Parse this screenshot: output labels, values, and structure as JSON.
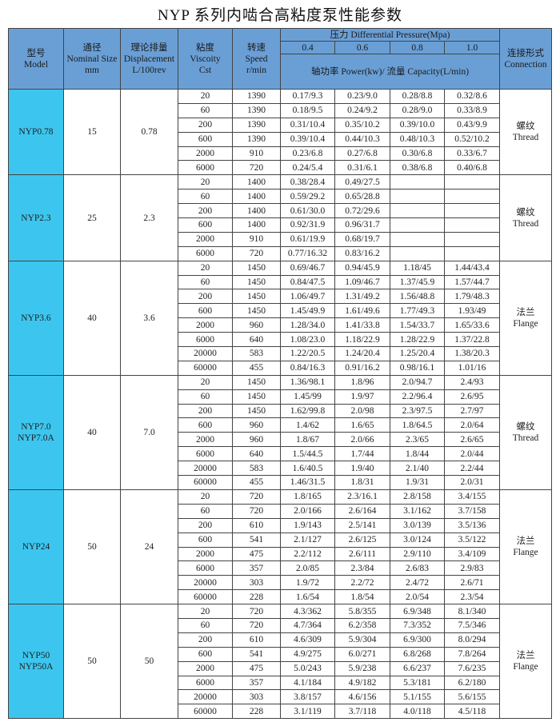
{
  "title": "NYP 系列内啮合高粘度泵性能参数",
  "header": {
    "model": [
      "型号",
      "Model"
    ],
    "nominal_size": [
      "通径",
      "Nominal Size",
      "mm"
    ],
    "displacement": [
      "理论排量",
      "Displacement",
      "L/100rev"
    ],
    "viscosity": [
      "粘度",
      "Viscoity",
      "Cst"
    ],
    "speed": [
      "转速",
      "Speed",
      "r/min"
    ],
    "pressure": "压力 Differential Pressure(Mpa)",
    "pressures": [
      "0.4",
      "0.6",
      "0.8",
      "1.0"
    ],
    "power_capacity": "轴功率 Power(kw)/ 流量 Capacity(L/min)",
    "connection": [
      "连接形式",
      "Connection"
    ]
  },
  "colors": {
    "header_bg": "#6a9fd6",
    "model_bg": "#3cc6ef"
  },
  "groups": [
    {
      "model": [
        "NYP0.78"
      ],
      "size": "15",
      "disp": "0.78",
      "conn": [
        "螺纹",
        "Thread"
      ],
      "rows": [
        [
          "20",
          "1390",
          "0.17/9.3",
          "0.23/9.0",
          "0.28/8.8",
          "0.32/8.6"
        ],
        [
          "60",
          "1390",
          "0.18/9.5",
          "0.24/9.2",
          "0.28/9.0",
          "0.33/8.9"
        ],
        [
          "200",
          "1390",
          "0.31/10.4",
          "0.35/10.2",
          "0.39/10.0",
          "0.43/9.9"
        ],
        [
          "600",
          "1390",
          "0.39/10.4",
          "0.44/10.3",
          "0.48/10.3",
          "0.52/10.2"
        ],
        [
          "2000",
          "910",
          "0.23/6.8",
          "0.27/6.8",
          "0.30/6.8",
          "0.33/6.7"
        ],
        [
          "6000",
          "720",
          "0.24/5.4",
          "0.31/6.1",
          "0.38/6.8",
          "0.40/6.8"
        ]
      ]
    },
    {
      "model": [
        "NYP2.3"
      ],
      "size": "25",
      "disp": "2.3",
      "conn": [
        "螺纹",
        "Thread"
      ],
      "rows": [
        [
          "20",
          "1400",
          "0.38/28.4",
          "0.49/27.5",
          "",
          ""
        ],
        [
          "60",
          "1400",
          "0.59/29.2",
          "0.65/28.8",
          "",
          ""
        ],
        [
          "200",
          "1400",
          "0.61/30.0",
          "0.72/29.6",
          "",
          ""
        ],
        [
          "600",
          "1400",
          "0.92/31.9",
          "0.96/31.7",
          "",
          ""
        ],
        [
          "2000",
          "910",
          "0.61/19.9",
          "0.68/19.7",
          "",
          ""
        ],
        [
          "6000",
          "720",
          "0.77/16.32",
          "0.83/16.2",
          "",
          ""
        ]
      ]
    },
    {
      "model": [
        "NYP3.6"
      ],
      "size": "40",
      "disp": "3.6",
      "conn": [
        "法兰",
        "Flange"
      ],
      "rows": [
        [
          "20",
          "1450",
          "0.69/46.7",
          "0.94/45.9",
          "1.18/45",
          "1.44/43.4"
        ],
        [
          "60",
          "1450",
          "0.84/47.5",
          "1.09/46.7",
          "1.37/45.9",
          "1.57/44.7"
        ],
        [
          "200",
          "1450",
          "1.06/49.7",
          "1.31/49.2",
          "1.56/48.8",
          "1.79/48.3"
        ],
        [
          "600",
          "1450",
          "1.45/49.9",
          "1.61/49.6",
          "1.77/49.3",
          "1.93/49"
        ],
        [
          "2000",
          "960",
          "1.28/34.0",
          "1.41/33.8",
          "1.54/33.7",
          "1.65/33.6"
        ],
        [
          "6000",
          "640",
          "1.08/23.0",
          "1.18/22.9",
          "1.28/22.9",
          "1.37/22.8"
        ],
        [
          "20000",
          "583",
          "1.22/20.5",
          "1.24/20.4",
          "1.25/20.4",
          "1.38/20.3"
        ],
        [
          "60000",
          "455",
          "0.84/16.3",
          "0.91/16.2",
          "0.98/16.1",
          "1.01/16"
        ]
      ]
    },
    {
      "model": [
        "NYP7.0",
        "NYP7.0A"
      ],
      "size": "40",
      "disp": "7.0",
      "conn": [
        "螺纹",
        "Thread"
      ],
      "rows": [
        [
          "20",
          "1450",
          "1.36/98.1",
          "1.8/96",
          "2.0/94.7",
          "2.4/93"
        ],
        [
          "60",
          "1450",
          "1.45/99",
          "1.9/97",
          "2.2/96.4",
          "2.6/95"
        ],
        [
          "200",
          "1450",
          "1.62/99.8",
          "2.0/98",
          "2.3/97.5",
          "2.7/97"
        ],
        [
          "600",
          "960",
          "1.4/62",
          "1.6/65",
          "1.8/64.5",
          "2.0/64"
        ],
        [
          "2000",
          "960",
          "1.8/67",
          "2.0/66",
          "2.3/65",
          "2.6/65"
        ],
        [
          "6000",
          "640",
          "1.5/44.5",
          "1.7/44",
          "1.8/44",
          "2.0/44"
        ],
        [
          "20000",
          "583",
          "1.6/40.5",
          "1.9/40",
          "2.1/40",
          "2.2/44"
        ],
        [
          "60000",
          "455",
          "1.46/31.5",
          "1.8/31",
          "1.9/31",
          "2.0/31"
        ]
      ]
    },
    {
      "model": [
        "NYP24"
      ],
      "size": "50",
      "disp": "24",
      "conn": [
        "法兰",
        "Flange"
      ],
      "rows": [
        [
          "20",
          "720",
          "1.8/165",
          "2.3/16.1",
          "2.8/158",
          "3.4/155"
        ],
        [
          "60",
          "720",
          "2.0/166",
          "2.6/164",
          "3.1/162",
          "3.7/158"
        ],
        [
          "200",
          "610",
          "1.9/143",
          "2.5/141",
          "3.0/139",
          "3.5/136"
        ],
        [
          "600",
          "541",
          "2.1/127",
          "2.6/125",
          "3.0/124",
          "3.5/122"
        ],
        [
          "2000",
          "475",
          "2.2/112",
          "2.6/111",
          "2.9/110",
          "3.4/109"
        ],
        [
          "6000",
          "357",
          "2.0/85",
          "2.3/84",
          "2.6/83",
          "2.9/83"
        ],
        [
          "20000",
          "303",
          "1.9/72",
          "2.2/72",
          "2.4/72",
          "2.6/71"
        ],
        [
          "60000",
          "228",
          "1.6/54",
          "1.8/54",
          "2.0/54",
          "2.3/54"
        ]
      ]
    },
    {
      "model": [
        "NYP50",
        "NYP50A"
      ],
      "size": "50",
      "disp": "50",
      "conn": [
        "法兰",
        "Flange"
      ],
      "rows": [
        [
          "20",
          "720",
          "4.3/362",
          "5.8/355",
          "6.9/348",
          "8.1/340"
        ],
        [
          "60",
          "720",
          "4.7/364",
          "6.2/358",
          "7.3/352",
          "7.5/346"
        ],
        [
          "200",
          "610",
          "4.6/309",
          "5.9/304",
          "6.9/300",
          "8.0/294"
        ],
        [
          "600",
          "541",
          "4.9/275",
          "6.0/271",
          "6.8/268",
          "7.8/264"
        ],
        [
          "2000",
          "475",
          "5.0/243",
          "5.9/238",
          "6.6/237",
          "7.6/235"
        ],
        [
          "6000",
          "357",
          "4.1/184",
          "4.9/182",
          "5.3/181",
          "6.2/180"
        ],
        [
          "20000",
          "303",
          "3.8/157",
          "4.6/156",
          "5.1/155",
          "5.6/155"
        ],
        [
          "60000",
          "228",
          "3.1/119",
          "3.7/118",
          "4.0/118",
          "4.5/118"
        ]
      ]
    }
  ]
}
